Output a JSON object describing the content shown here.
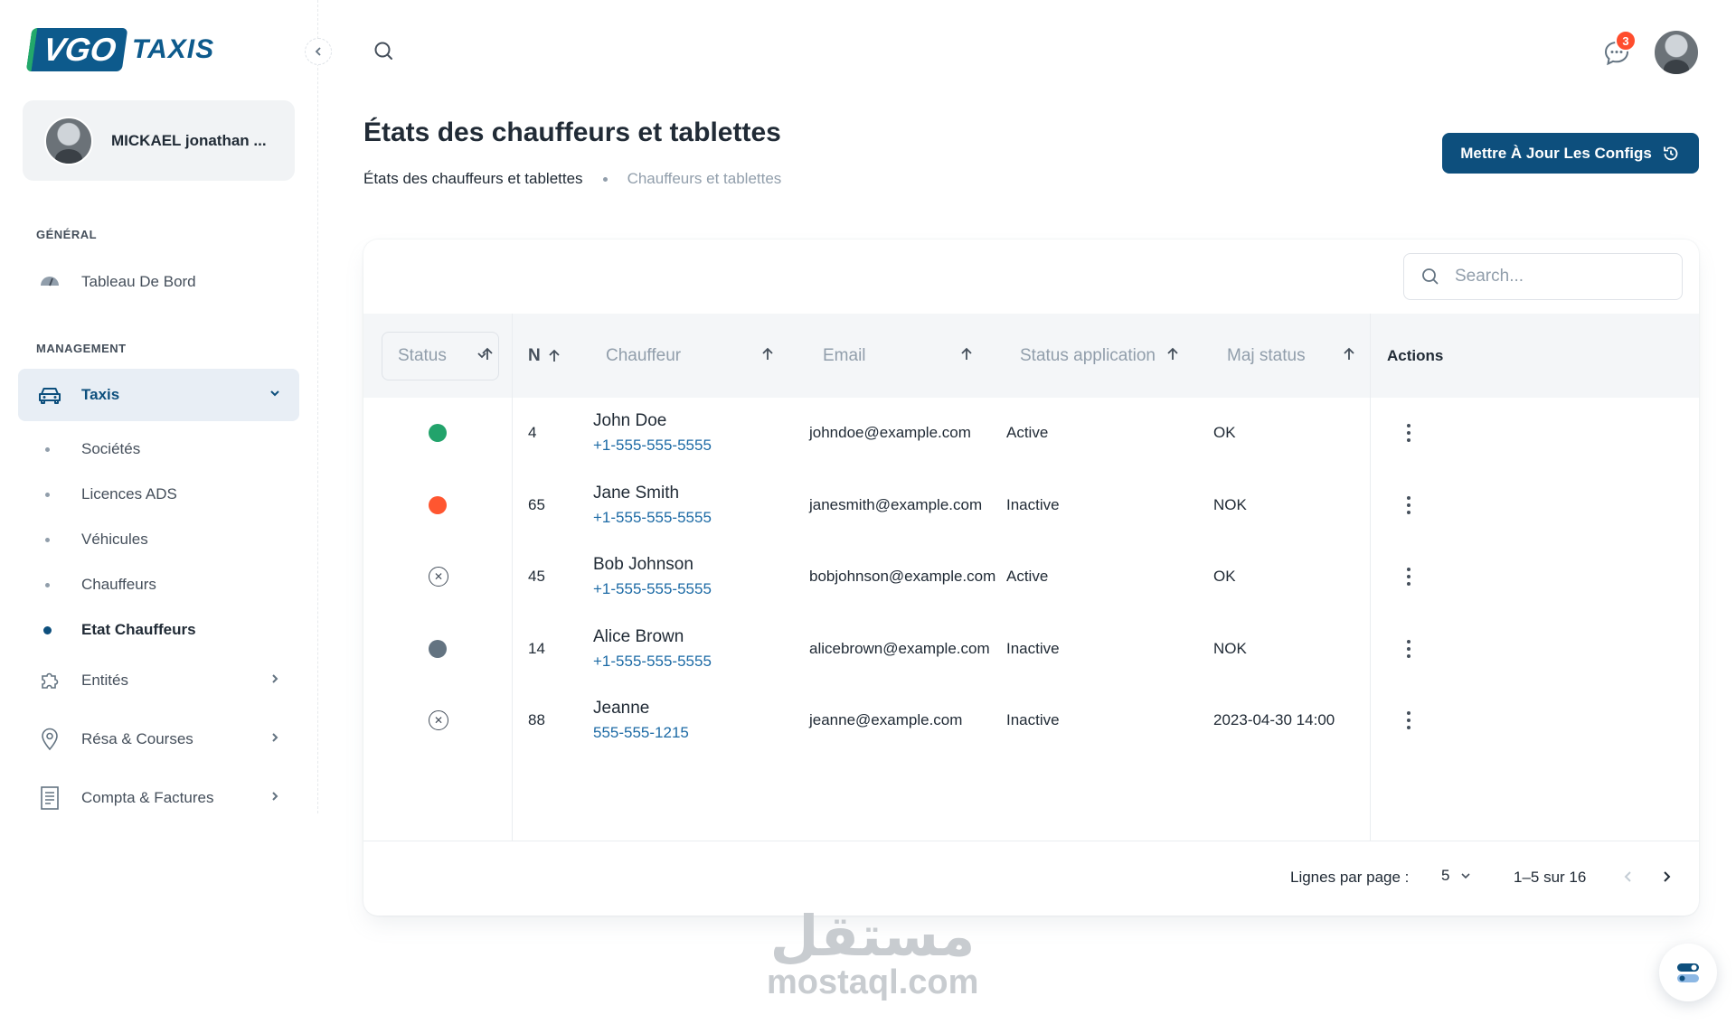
{
  "brand": {
    "logo_mark": "VGO",
    "logo_text": "TAXIS"
  },
  "user": {
    "name": "MICKAEL jonathan ..."
  },
  "sidebar": {
    "section_general": "GÉNÉRAL",
    "section_management": "MANAGEMENT",
    "dashboard": "Tableau De Bord",
    "taxis": "Taxis",
    "sub": [
      "Sociétés",
      "Licences ADS",
      "Véhicules",
      "Chauffeurs",
      "Etat Chauffeurs"
    ],
    "entities": "Entités",
    "resa": "Résa & Courses",
    "compta": "Compta & Factures"
  },
  "topbar": {
    "notifications_count": "3"
  },
  "page": {
    "title": "États des chauffeurs et tablettes",
    "breadcrumb": [
      "États des chauffeurs et tablettes",
      "Chauffeurs et tablettes"
    ],
    "action_button": "Mettre À Jour Les Configs"
  },
  "table": {
    "search_placeholder": "Search...",
    "status_filter": "Status",
    "headers": {
      "n": "N",
      "driver": "Chauffeur",
      "email": "Email",
      "status_app": "Status application",
      "maj": "Maj status",
      "actions": "Actions"
    },
    "rows": [
      {
        "status": "online",
        "status_color": "#22a36b",
        "n": "4",
        "name": "John Doe",
        "phone": "+1-555-555-5555",
        "email": "johndoe@example.com",
        "status_app": "Active",
        "maj": "OK"
      },
      {
        "status": "busy",
        "status_color": "#ff5630",
        "n": "65",
        "name": "Jane Smith",
        "phone": "+1-555-555-5555",
        "email": "janesmith@example.com",
        "status_app": "Inactive",
        "maj": "NOK"
      },
      {
        "status": "none",
        "status_color": "",
        "n": "45",
        "name": "Bob Johnson",
        "phone": "+1-555-555-5555",
        "email": "bobjohnson@example.com",
        "status_app": "Active",
        "maj": "OK"
      },
      {
        "status": "offline",
        "status_color": "#637381",
        "n": "14",
        "name": "Alice Brown",
        "phone": "+1-555-555-5555",
        "email": "alicebrown@example.com",
        "status_app": "Inactive",
        "maj": "NOK"
      },
      {
        "status": "none",
        "status_color": "",
        "n": "88",
        "name": "Jeanne",
        "phone": "555-555-1215",
        "email": "jeanne@example.com",
        "status_app": "Inactive",
        "maj": "2023-04-30 14:00"
      }
    ],
    "footer": {
      "rows_label": "Lignes par page :",
      "rows_value": "5",
      "range": "1–5 sur 16"
    }
  },
  "watermark": {
    "arabic": "مستقل",
    "latin": "mostaql.com"
  }
}
